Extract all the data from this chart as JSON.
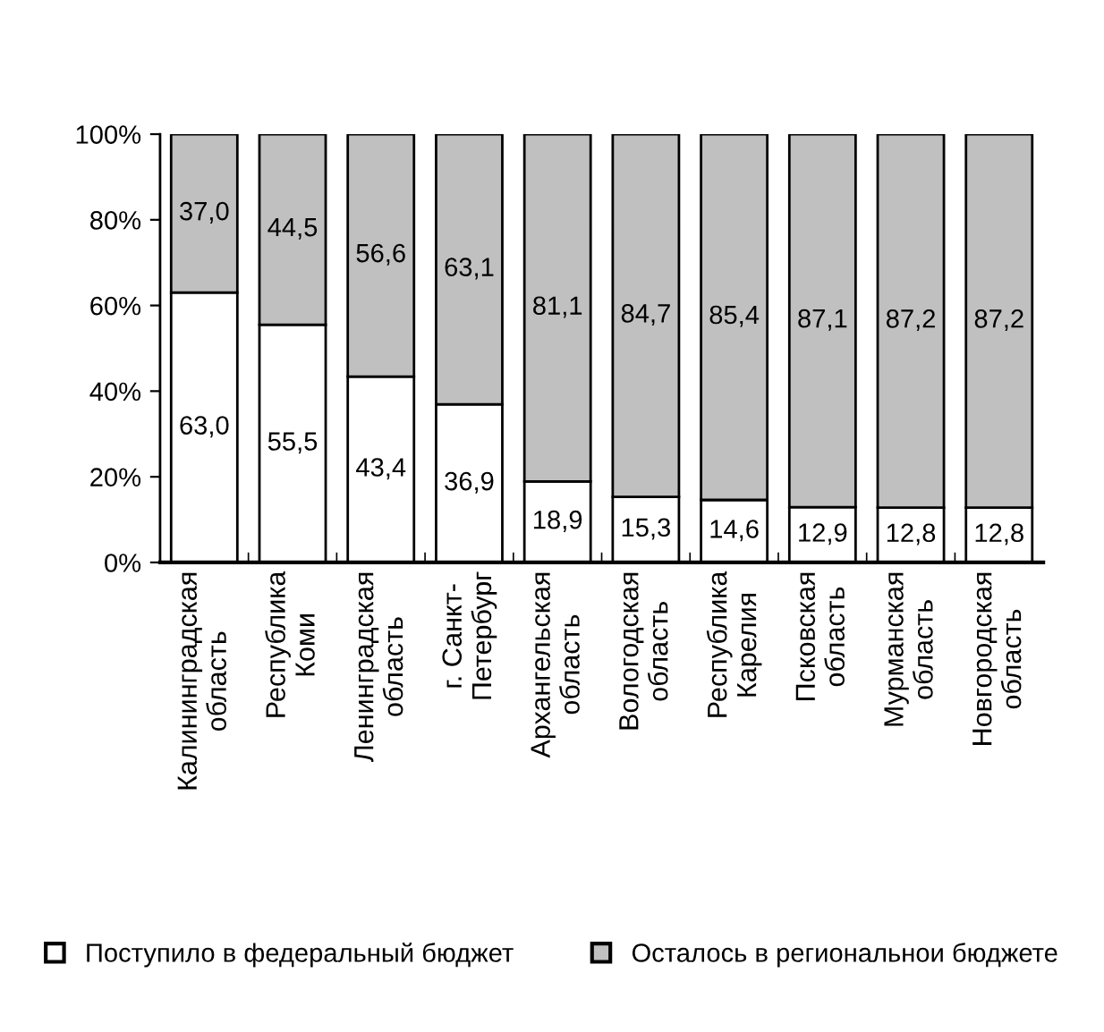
{
  "chart_data": {
    "type": "bar",
    "stacked": true,
    "categories": [
      "Калининградская\nобласть",
      "Республика\nКоми",
      "Ленинградская\nобласть",
      "г. Санкт-\nПетербург",
      "Архангельская\nобласть",
      "Вологодская\nобласть",
      "Республика\nКарелия",
      "Псковская\nобласть",
      "Мурманская\nобласть",
      "Новгородская\nобласть"
    ],
    "series": [
      {
        "name": "Поступило в федеральный бюджет",
        "color": "#ffffff",
        "values": [
          63.0,
          55.5,
          43.4,
          36.9,
          18.9,
          15.3,
          14.6,
          12.9,
          12.8,
          12.8
        ],
        "value_labels": [
          "63,0",
          "55,5",
          "43,4",
          "36,9",
          "18,9",
          "15,3",
          "14,6",
          "12,9",
          "12,8",
          "12,8"
        ]
      },
      {
        "name": "Осталось в региональнои бюджете",
        "color": "#c0c0c0",
        "values": [
          37.0,
          44.5,
          56.6,
          63.1,
          81.1,
          84.7,
          85.4,
          87.1,
          87.2,
          87.2
        ],
        "value_labels": [
          "37,0",
          "44,5",
          "56,6",
          "63,1",
          "81,1",
          "84,7",
          "85,4",
          "87,1",
          "87,2",
          "87,2"
        ]
      }
    ],
    "ylim": [
      0,
      100
    ],
    "yticks": [
      {
        "value": 0,
        "label": "0%"
      },
      {
        "value": 20,
        "label": "20%"
      },
      {
        "value": 40,
        "label": "40%"
      },
      {
        "value": 60,
        "label": "60%"
      },
      {
        "value": 80,
        "label": "80%"
      },
      {
        "value": 100,
        "label": "100%"
      }
    ],
    "grid": false,
    "legend": "bottom"
  }
}
